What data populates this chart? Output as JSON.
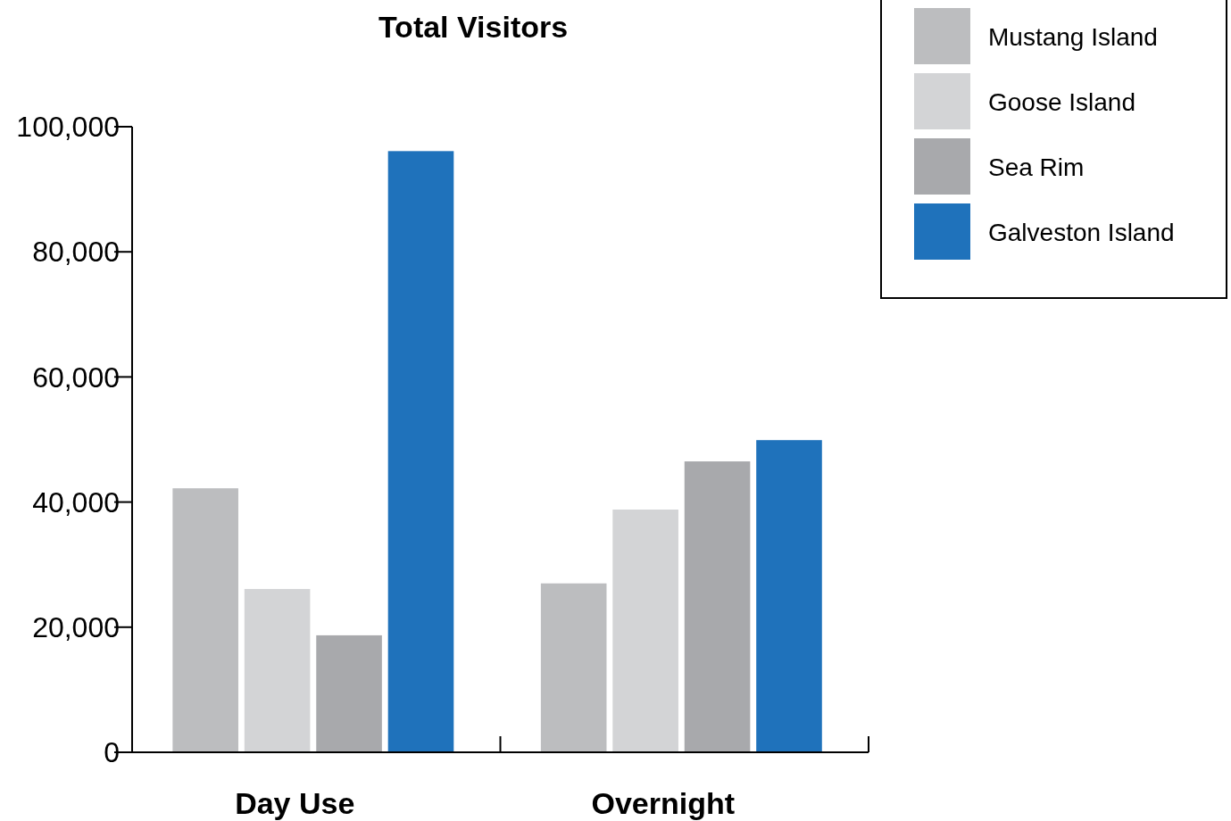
{
  "chart_data": {
    "type": "bar",
    "title": "Total Visitors",
    "categories": [
      "Day Use",
      "Overnight"
    ],
    "series": [
      {
        "name": "Mustang Island",
        "color": "#bcbdbf",
        "values": [
          42200,
          27000
        ]
      },
      {
        "name": "Goose Island",
        "color": "#d3d4d6",
        "values": [
          26100,
          38800
        ]
      },
      {
        "name": "Sea Rim",
        "color": "#a8a9ac",
        "values": [
          18700,
          46500
        ]
      },
      {
        "name": "Galveston Island",
        "color": "#1f72bb",
        "values": [
          96100,
          49900
        ]
      }
    ],
    "ylim": [
      0,
      100000
    ],
    "yticks": [
      {
        "value": 0,
        "label": "0"
      },
      {
        "value": 20000,
        "label": "20,000"
      },
      {
        "value": 40000,
        "label": "40,000"
      },
      {
        "value": 60000,
        "label": "60,000"
      },
      {
        "value": 80000,
        "label": "80,000"
      },
      {
        "value": 100000,
        "label": "100,000"
      }
    ],
    "grid": false,
    "legend": "top right"
  }
}
